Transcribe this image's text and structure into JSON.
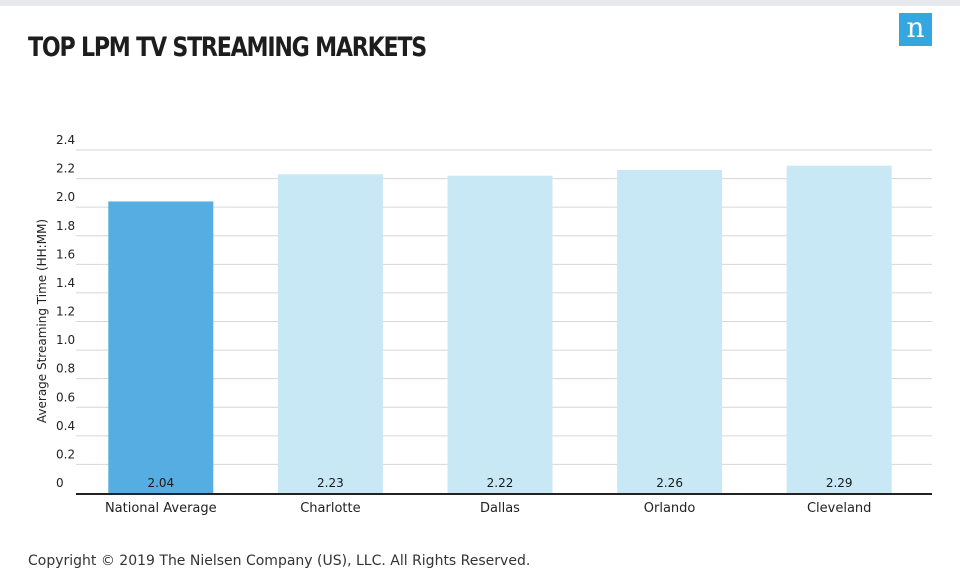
{
  "header": {
    "title": "TOP LPM TV STREAMING MARKETS",
    "logo_letter": "n",
    "logo_color": "#34a7e0"
  },
  "footer": {
    "copyright": "Copyright © 2019 The Nielsen Company (US), LLC. All Rights Reserved."
  },
  "chart_data": {
    "type": "bar",
    "title": "TOP LPM TV STREAMING MARKETS",
    "xlabel": "",
    "ylabel": "Average Streaming Time (HH:MM)",
    "categories": [
      "National Average",
      "Charlotte",
      "Dallas",
      "Orlando",
      "Cleveland"
    ],
    "values": [
      2.04,
      2.23,
      2.22,
      2.26,
      2.29
    ],
    "value_labels": [
      "2.04",
      "2.23",
      "2.22",
      "2.26",
      "2.29"
    ],
    "yticks": [
      "0",
      "0.2",
      "0.4",
      "0.6",
      "0.8",
      "1.0",
      "1.2",
      "1.4",
      "1.6",
      "1.8",
      "2.0",
      "2.2",
      "2.4"
    ],
    "ylim": [
      0,
      2.4
    ],
    "grid": true,
    "legend": "none",
    "colors": {
      "highlight": "#55ade2",
      "default": "#c8e8f5",
      "axis": "#222222",
      "grid": "#d6d6d6"
    },
    "highlight_index": 0
  }
}
